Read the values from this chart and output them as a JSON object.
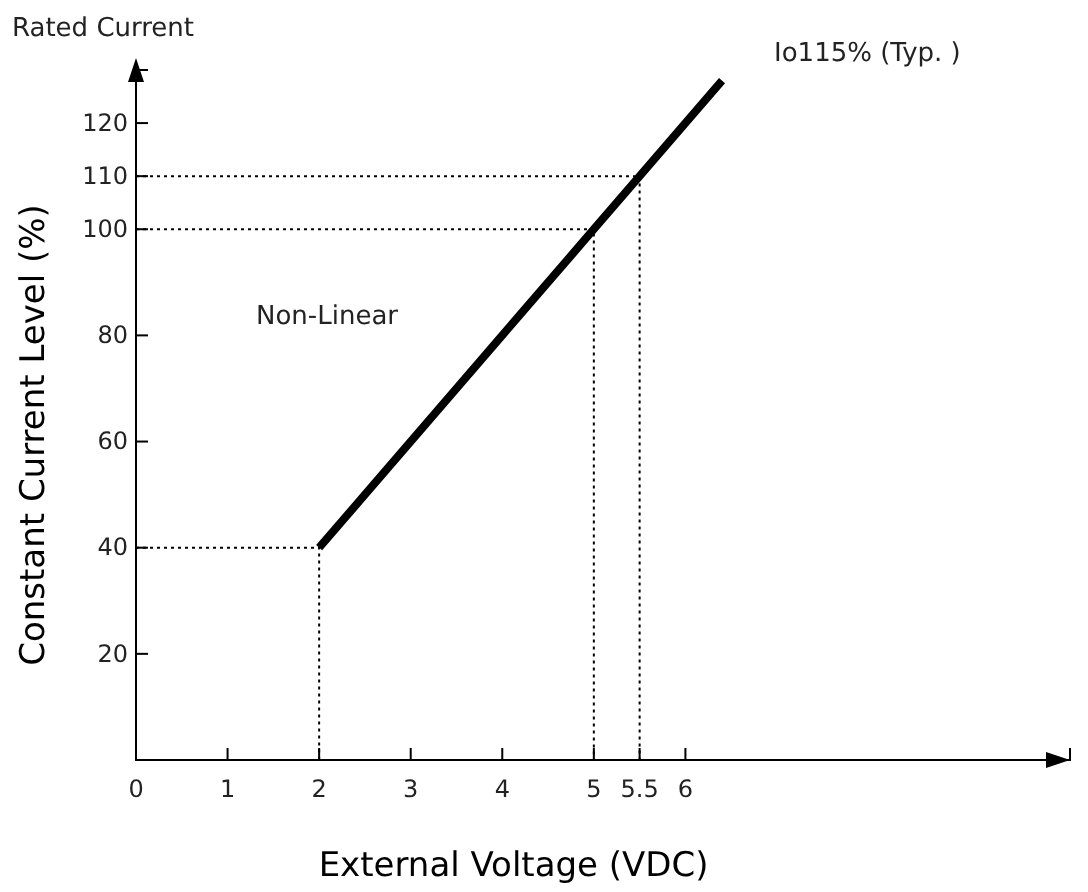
{
  "chart_data": {
    "type": "line",
    "xlabel": "External Voltage (VDC)",
    "ylabel": "Constant Current Level (%)",
    "xlim": [
      0,
      10.2
    ],
    "ylim": [
      0,
      130
    ],
    "xticks": [
      0,
      1,
      2,
      3,
      4,
      5,
      5.5,
      6
    ],
    "yticks": [
      20,
      40,
      60,
      80,
      100,
      110,
      120
    ],
    "series": [
      {
        "color": "#000000",
        "x": [
          2,
          5,
          5.5,
          6.4
        ],
        "values": [
          40,
          100,
          110,
          128
        ],
        "line_style": "solid"
      },
      {
        "color": "#000000",
        "x": [
          0,
          2,
          2
        ],
        "values": [
          40,
          40,
          0
        ],
        "line_style": "dotted"
      },
      {
        "color": "#000000",
        "x": [
          0,
          5,
          5
        ],
        "values": [
          100,
          100,
          0
        ],
        "line_style": "dotted"
      },
      {
        "color": "#000000",
        "x": [
          0,
          5.5,
          5.5
        ],
        "values": [
          110,
          110,
          0
        ],
        "line_style": "dotted"
      }
    ],
    "annotations": [
      "Rated Current",
      "Non-Linear",
      {
        "text": "Io115% (Typ. )",
        "x": 6.4,
        "y": 128
      }
    ],
    "grid": false,
    "marker": "none"
  }
}
